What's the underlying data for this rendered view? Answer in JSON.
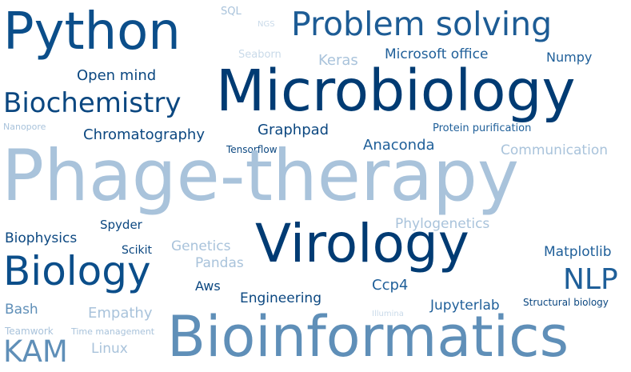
{
  "colors": {
    "dark": "#003b73",
    "navy": "#0b4780",
    "mid": "#1f5f99",
    "steel": "#5f8fb8",
    "light": "#a9c3db",
    "pale": "#c9dae9"
  },
  "words": [
    {
      "text": "Python",
      "color": "#0b4e8a"
    },
    {
      "text": "SQL",
      "color": "#a9c3db"
    },
    {
      "text": "NGS",
      "color": "#c9dae9"
    },
    {
      "text": "Problem solving",
      "color": "#1d5c95"
    },
    {
      "text": "Seaborn",
      "color": "#c9dae9"
    },
    {
      "text": "Keras",
      "color": "#a9c3db"
    },
    {
      "text": "Microsoft office",
      "color": "#1f5f99"
    },
    {
      "text": "Numpy",
      "color": "#1f5f99"
    },
    {
      "text": "Open mind",
      "color": "#0b4780"
    },
    {
      "text": "Microbiology",
      "color": "#003b73"
    },
    {
      "text": "Biochemistry",
      "color": "#0b4780"
    },
    {
      "text": "Nanopore",
      "color": "#a9c3db"
    },
    {
      "text": "Chromatography",
      "color": "#0b4780"
    },
    {
      "text": "Graphpad",
      "color": "#0b4780"
    },
    {
      "text": "Protein purification",
      "color": "#1f5f99"
    },
    {
      "text": "Tensorflow",
      "color": "#0b4780"
    },
    {
      "text": "Anaconda",
      "color": "#1f5f99"
    },
    {
      "text": "Communication",
      "color": "#a9c3db"
    },
    {
      "text": "Phage-therapy",
      "color": "#a9c3db"
    },
    {
      "text": "Phylogenetics",
      "color": "#a9c3db"
    },
    {
      "text": "Spyder",
      "color": "#0b4780"
    },
    {
      "text": "Biophysics",
      "color": "#0b4780"
    },
    {
      "text": "Scikit",
      "color": "#0b4780"
    },
    {
      "text": "Genetics",
      "color": "#a9c3db"
    },
    {
      "text": "Pandas",
      "color": "#a9c3db"
    },
    {
      "text": "Virology",
      "color": "#003b73"
    },
    {
      "text": "Matplotlib",
      "color": "#1f5f99"
    },
    {
      "text": "Biology",
      "color": "#0b4e8a"
    },
    {
      "text": "NLP",
      "color": "#1f5f99"
    },
    {
      "text": "Aws",
      "color": "#0b4780"
    },
    {
      "text": "Engineering",
      "color": "#0b4780"
    },
    {
      "text": "Ccp4",
      "color": "#1f5f99"
    },
    {
      "text": "Bash",
      "color": "#5f8fb8"
    },
    {
      "text": "Empathy",
      "color": "#a9c3db"
    },
    {
      "text": "Jupyterlab",
      "color": "#1f5f99"
    },
    {
      "text": "Structural biology",
      "color": "#0b4780"
    },
    {
      "text": "Illumina",
      "color": "#c9dae9"
    },
    {
      "text": "Teamwork",
      "color": "#a9c3db"
    },
    {
      "text": "Time management",
      "color": "#a9c3db"
    },
    {
      "text": "Bioinformatics",
      "color": "#5f8fb8"
    },
    {
      "text": "KAM",
      "color": "#5f8fb8"
    },
    {
      "text": "Linux",
      "color": "#a9c3db"
    }
  ]
}
